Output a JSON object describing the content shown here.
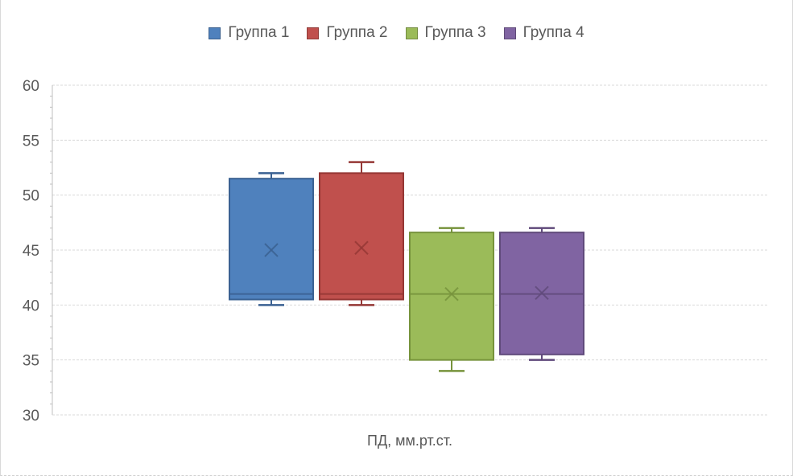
{
  "chart_data": {
    "type": "boxplot",
    "title": "",
    "xlabel": "ПД, мм.рт.ст.",
    "ylabel": "",
    "ylim": [
      30,
      60
    ],
    "yticks": [
      30,
      35,
      40,
      45,
      50,
      55,
      60
    ],
    "grid": true,
    "legend_position": "top",
    "series": [
      {
        "name": "Группа 1",
        "fill": "#4F81BD",
        "line": "#3A6192",
        "whisker_low": 40,
        "q1": 40.5,
        "median": 41,
        "q3": 51.5,
        "whisker_high": 52,
        "mean": 45.0
      },
      {
        "name": "Группа 2",
        "fill": "#C0504D",
        "line": "#953735",
        "whisker_low": 40,
        "q1": 40.5,
        "median": 41,
        "q3": 52,
        "whisker_high": 53,
        "mean": 45.2
      },
      {
        "name": "Группа 3",
        "fill": "#9BBB59",
        "line": "#77933C",
        "whisker_low": 34,
        "q1": 35,
        "median": 41,
        "q3": 46.6,
        "whisker_high": 47,
        "mean": 41.0
      },
      {
        "name": "Группа 4",
        "fill": "#8064A2",
        "line": "#604A7B",
        "whisker_low": 35,
        "q1": 35.5,
        "median": 41,
        "q3": 46.6,
        "whisker_high": 47,
        "mean": 41.1
      }
    ],
    "colors": {
      "gridline": "#d9d9d9",
      "axis": "#bfbfbf",
      "tick_label": "#595959"
    }
  }
}
